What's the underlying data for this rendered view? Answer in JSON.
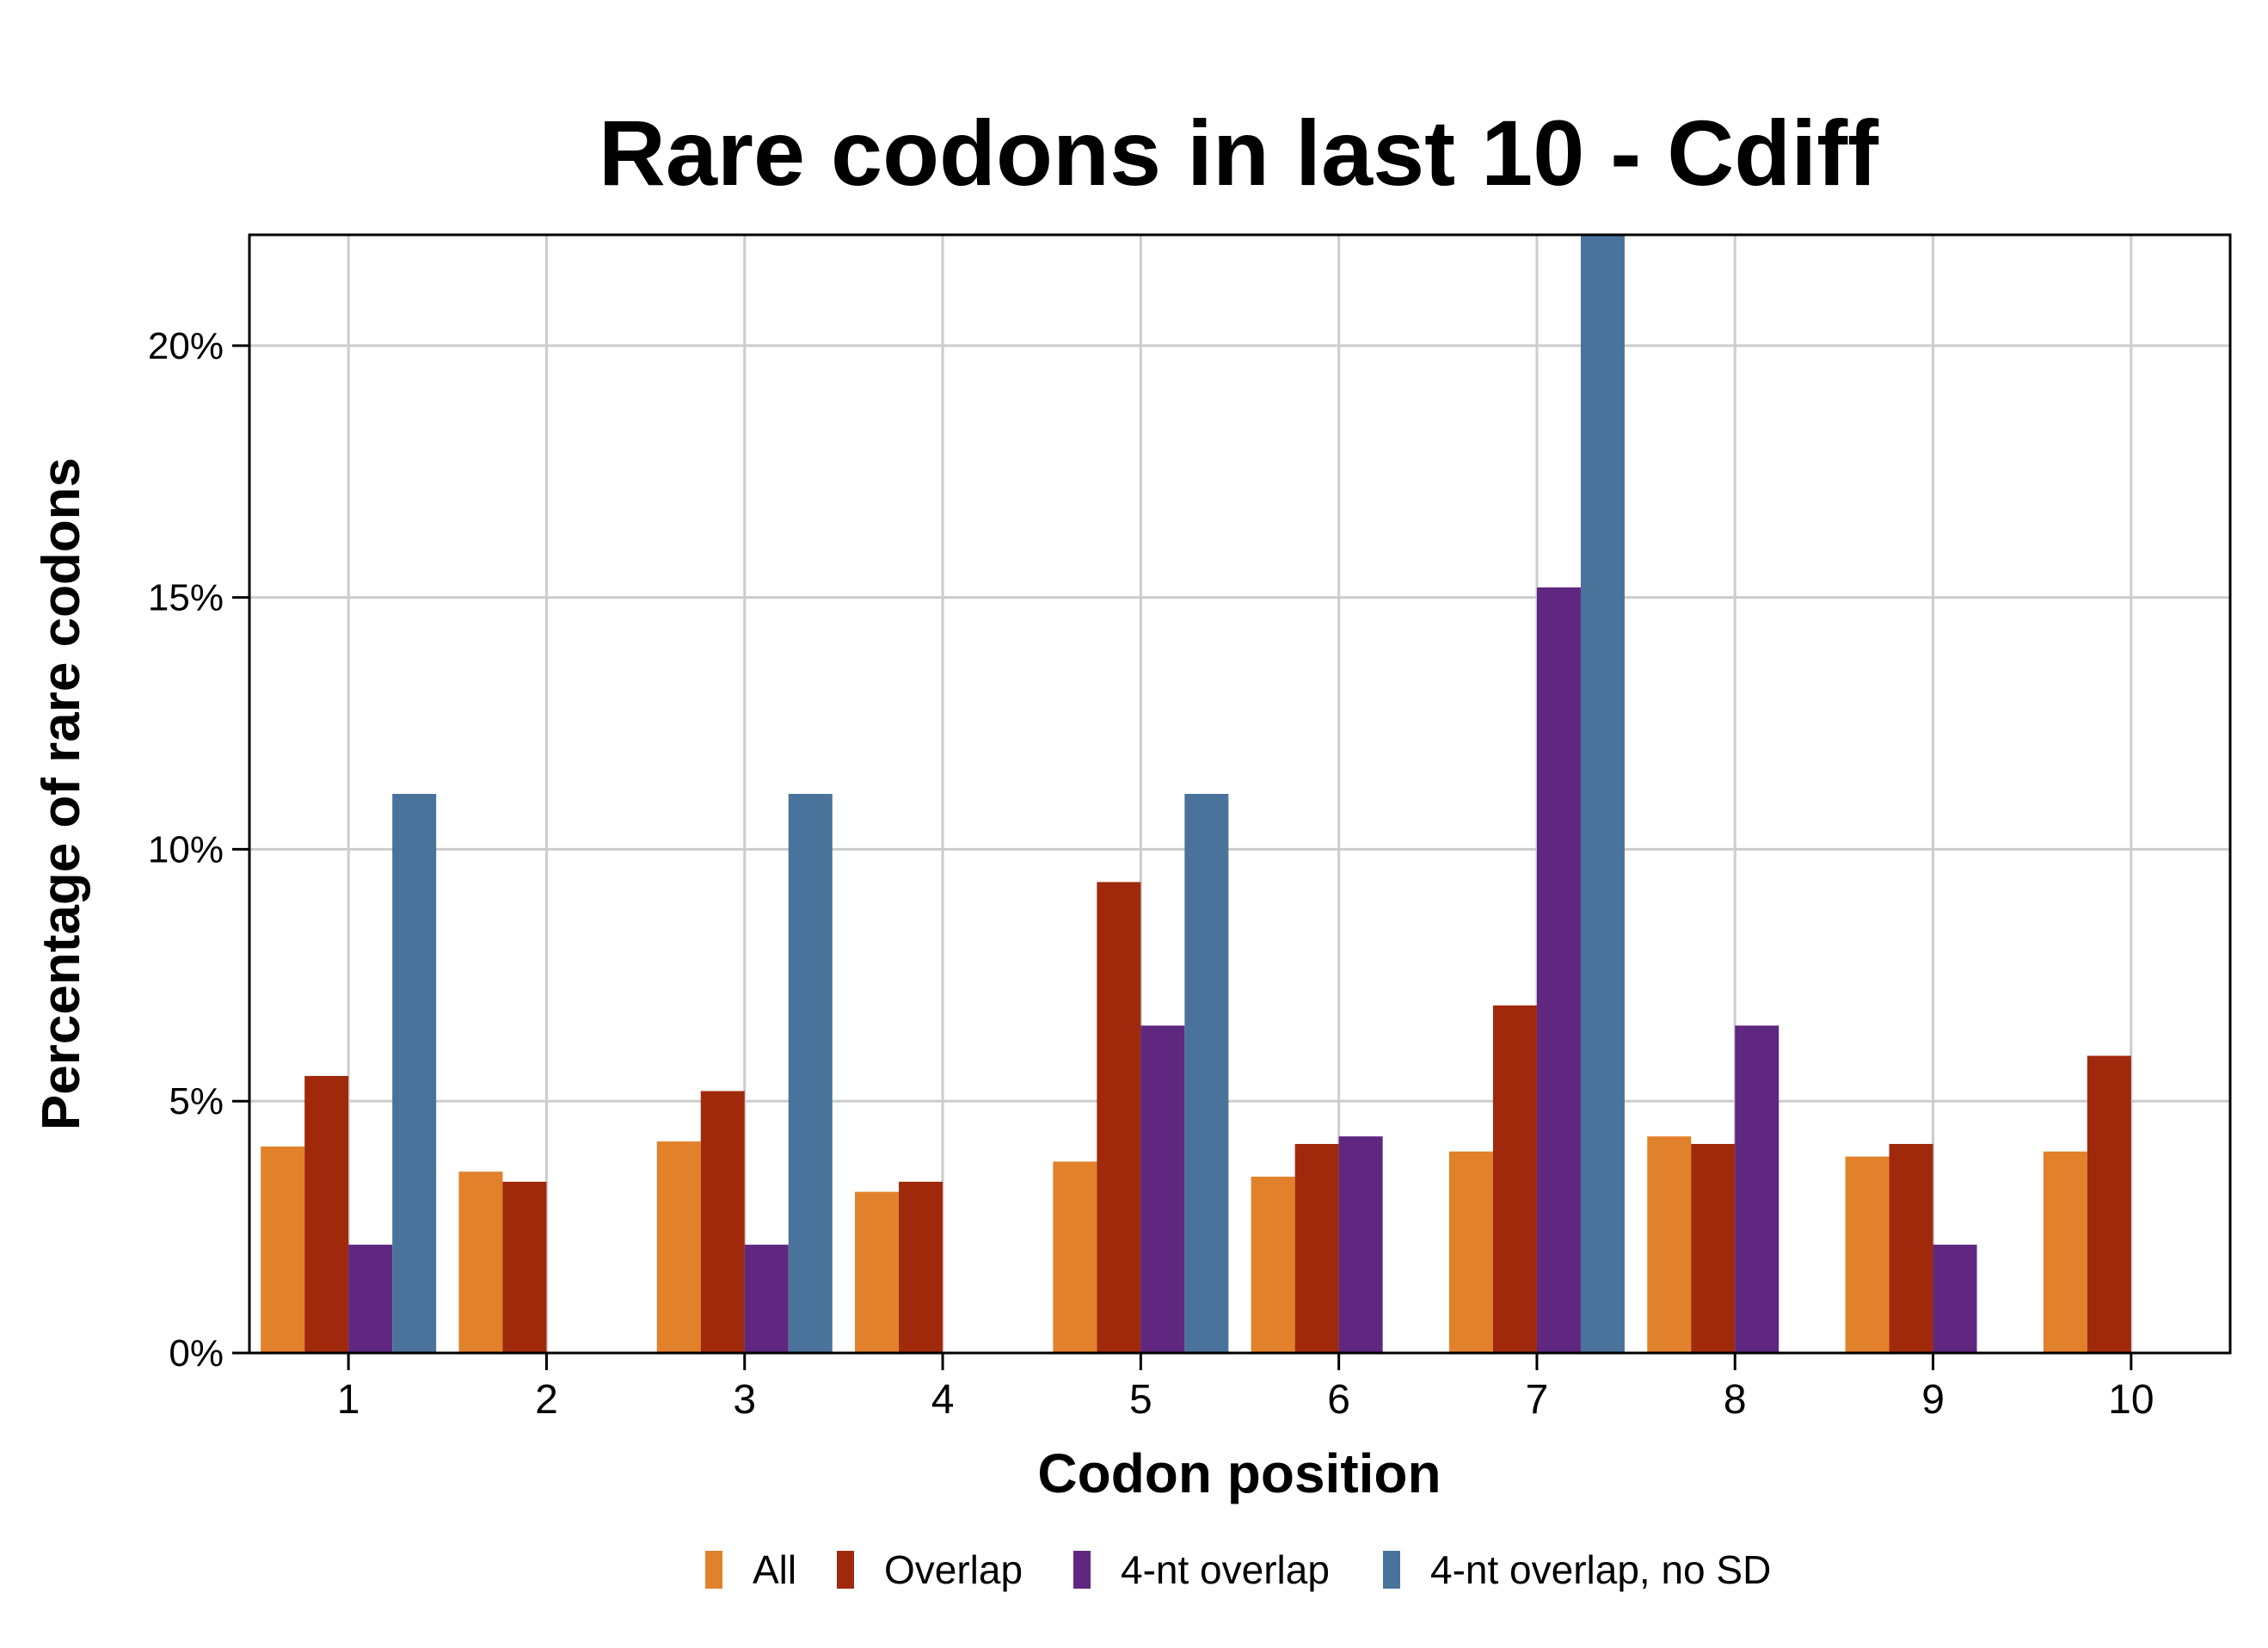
{
  "chart_data": {
    "type": "bar",
    "title": "Rare codons in last 10 - Cdiff",
    "xlabel": "Codon position",
    "ylabel": "Percentage of rare codons",
    "categories": [
      "1",
      "2",
      "3",
      "4",
      "5",
      "6",
      "7",
      "8",
      "9",
      "10"
    ],
    "ylim": [
      0,
      22.2
    ],
    "yticks": [
      0,
      5,
      10,
      15,
      20
    ],
    "ytick_labels": [
      "0%",
      "5%",
      "10%",
      "15%",
      "20%"
    ],
    "grid": true,
    "legend_position": "bottom",
    "series": [
      {
        "name": "All",
        "color": "#E2812B",
        "values": [
          4.1,
          3.6,
          4.2,
          3.2,
          3.8,
          3.5,
          4.0,
          4.3,
          3.9,
          4.0
        ]
      },
      {
        "name": "Overlap",
        "color": "#A0290C",
        "values": [
          5.5,
          3.4,
          5.2,
          3.4,
          9.35,
          4.15,
          6.9,
          4.15,
          4.15,
          5.9
        ]
      },
      {
        "name": "4-nt overlap",
        "color": "#5F277F",
        "values": [
          2.15,
          null,
          2.15,
          null,
          6.5,
          4.3,
          15.2,
          6.5,
          2.15,
          null
        ]
      },
      {
        "name": "4-nt overlap, no SD",
        "color": "#4A739B",
        "values": [
          11.1,
          null,
          11.1,
          null,
          11.1,
          null,
          22.2,
          null,
          null,
          null
        ]
      }
    ]
  }
}
